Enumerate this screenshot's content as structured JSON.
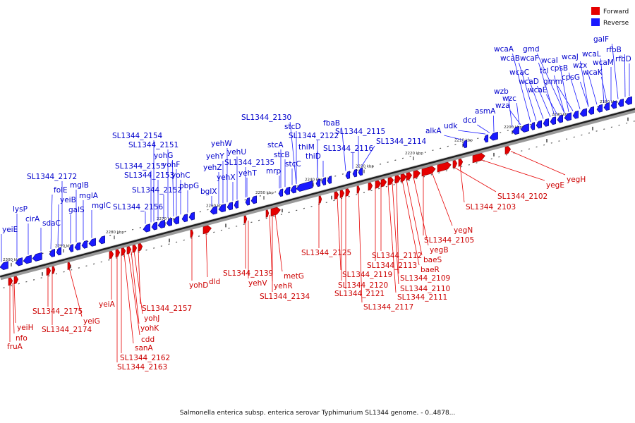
{
  "caption": "Salmonella enterica subsp. enterica serovar Typhimurium SL1344 genome. - 0..4878...",
  "colors": {
    "forward": "#e60000",
    "reverse": "#1a1aff",
    "forward_text": "#cc0000",
    "reverse_text": "#0000cc"
  },
  "legend": {
    "forward": "Forward",
    "reverse": "Reverse"
  },
  "ticks": [
    "2300 kbp",
    "2290 kbp",
    "2280 kbp",
    "2270 kbp",
    "2260 kbp",
    "2250 kbp",
    "2240 kbp",
    "2230 kbp",
    "2220 kbp",
    "2210 kbp",
    "2200 kbp",
    "2190 kbp",
    "2180 kbp"
  ],
  "reverse_labels": [
    "yeiE",
    "lysP",
    "cirA",
    "sdaC",
    "folE",
    "yeiB",
    "galS",
    "mglB",
    "mglA",
    "mglC",
    "SL1344_2172",
    "SL1344_2156",
    "SL1344_2155",
    "SL1344_2154",
    "SL1344_2153",
    "SL1344_2152",
    "SL1344_2151",
    "yohG",
    "yohC",
    "yohF",
    "pbpG",
    "bglX",
    "yehZ",
    "yehY",
    "yehX",
    "yehW",
    "yehU",
    "SL1344_2135",
    "yehT",
    "mrp",
    "stcB",
    "stcA",
    "stcC",
    "stcD",
    "SL1344_2130",
    "SL1344_2122",
    "thiM",
    "thiD",
    "fbaB",
    "SL1344_2116",
    "SL1344_2115",
    "SL1344_2114",
    "alkA",
    "udk",
    "dcd",
    "asmA",
    "wzb",
    "wzc",
    "wza",
    "wcaA",
    "wcaB",
    "wcaC",
    "wcaD",
    "wcaE",
    "gmd",
    "wcaF",
    "fcl",
    "gmm",
    "wcaI",
    "cpsB",
    "cpsG",
    "wcaJ",
    "wzx",
    "wcaL",
    "wcaM",
    "wcaK",
    "galF",
    "rfbB",
    "rfbD"
  ],
  "forward_labels": [
    "fruA",
    "nfo",
    "yeiH",
    "SL1344_2175",
    "SL1344_2174",
    "yeiG",
    "yeiA",
    "SL1344_2157",
    "yohJ",
    "yohK",
    "cdd",
    "sanA",
    "SL1344_2162",
    "SL1344_2163",
    "yohD",
    "dld",
    "SL1344_2139",
    "yehV",
    "yehR",
    "metG",
    "SL1344_2134",
    "SL1344_2125",
    "SL1344_2119",
    "SL1344_2120",
    "SL1344_2121",
    "SL1344_2117",
    "SL1344_2112",
    "SL1344_2113",
    "yegB",
    "baeS",
    "baeR",
    "SL1344_2109",
    "SL1344_2110",
    "SL1344_2111",
    "yegN",
    "SL1344_2105",
    "SL1344_2103",
    "SL1344_2102",
    "yegE",
    "yegH"
  ]
}
